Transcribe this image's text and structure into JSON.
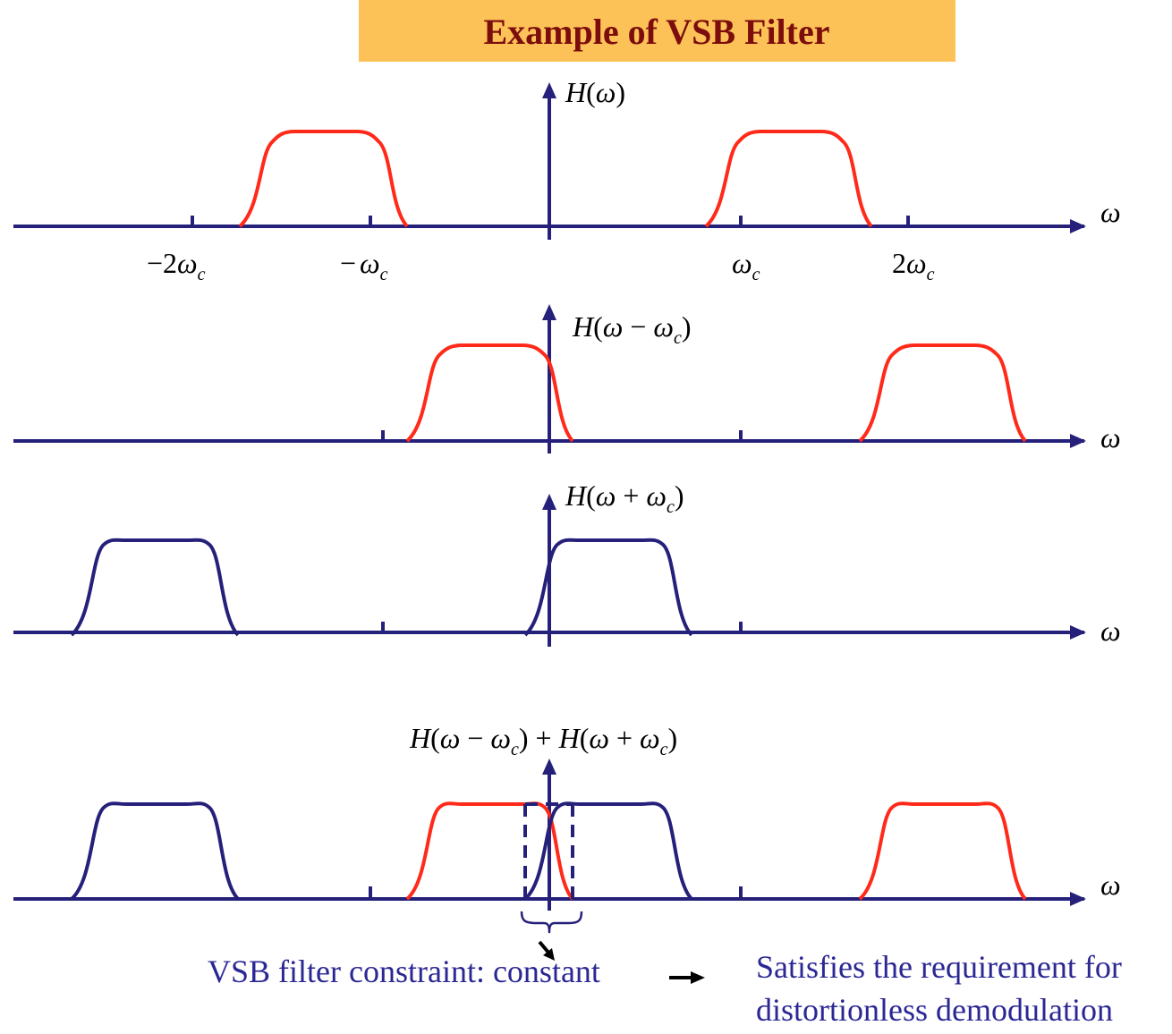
{
  "title": "Example of VSB Filter",
  "axis_symbol": "ω",
  "panels": [
    {
      "label_parts": [
        "H",
        "(",
        "ω",
        ")"
      ]
    },
    {
      "label_parts": [
        "H",
        "(",
        "ω",
        " − ",
        "ω",
        "c",
        ")"
      ]
    },
    {
      "label_parts": [
        "H",
        "(",
        "ω",
        " + ",
        "ω",
        "c",
        ")"
      ]
    },
    {
      "label_parts": [
        "H",
        "(",
        "ω",
        " − ",
        "ω",
        "c",
        ")",
        " + ",
        "H",
        "(",
        "ω",
        " + ",
        "ω",
        "c",
        ")"
      ]
    }
  ],
  "tick_labels": {
    "neg2wc_sign": "−2",
    "neg_wc_sign": "−",
    "wc_sym": "ω",
    "sub": "c",
    "two": "2"
  },
  "caption_left": "VSB filter constraint: constant",
  "caption_right_line1": "Satisfies the requirement for",
  "caption_right_line2": "distortionless demodulation",
  "colors": {
    "title_bg": "#fdc257",
    "title_text": "#7b0d0d",
    "axis": "#25207a",
    "red_curve": "#ff2a1a",
    "caption": "#2b2794"
  }
}
